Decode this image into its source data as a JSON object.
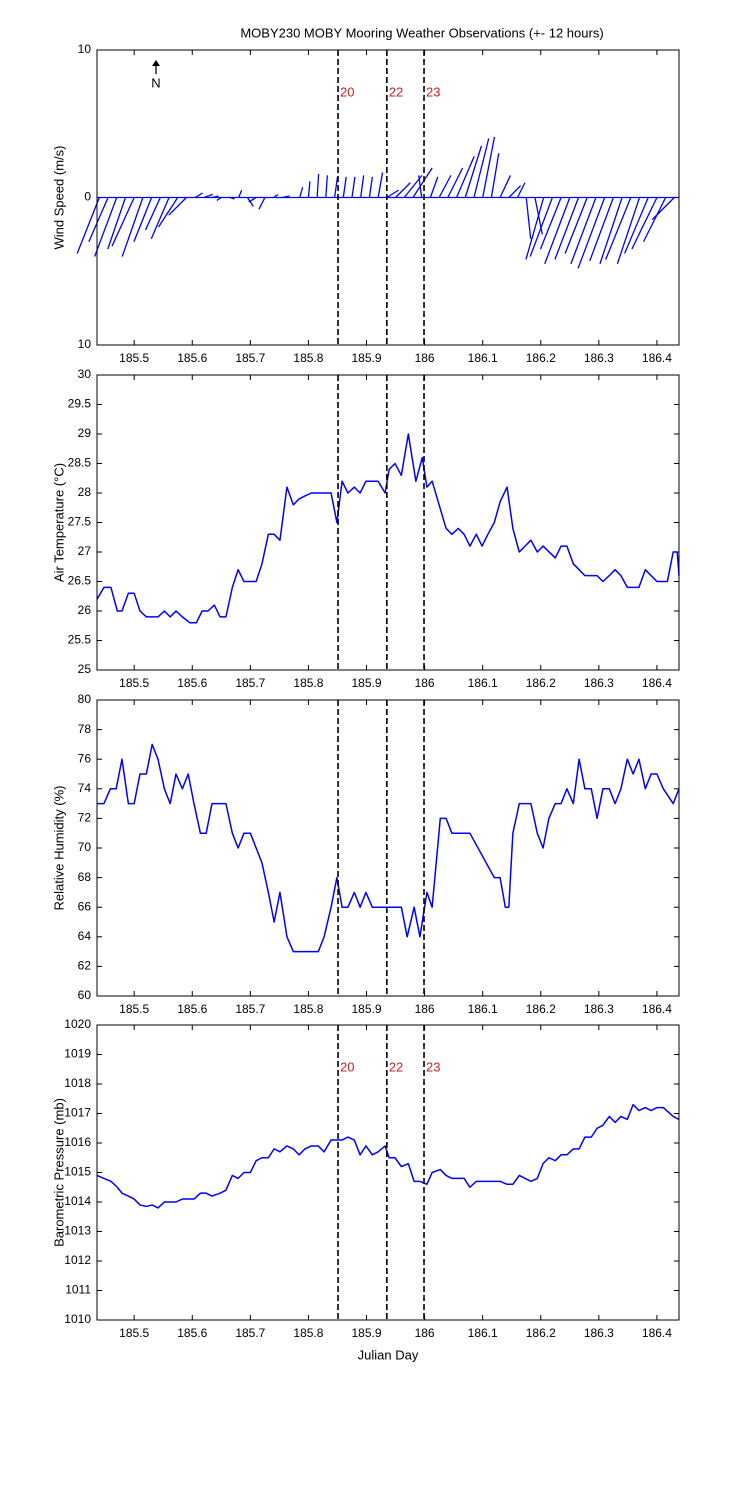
{
  "title": "MOBY230 MOBY Mooring Weather Observations (+- 12 hours)",
  "chart_data": [
    {
      "type": "stick",
      "ylabel": "Wind Speed (m/s)",
      "color": "#0000ff",
      "annotation": "N",
      "xlim": [
        185.436,
        186.438
      ],
      "xticks": [
        185.5,
        185.6,
        185.7,
        185.8,
        185.9,
        186,
        186.1,
        186.2,
        186.3,
        186.4
      ],
      "ylim": [
        -10,
        10
      ],
      "yticks": [
        {
          "value": -10,
          "label": "10"
        },
        0,
        10
      ],
      "vlines": [
        185.851,
        185.935,
        185.999
      ],
      "vline_labels": [
        "20",
        "22",
        "23"
      ],
      "x": [
        185.44,
        185.455,
        185.47,
        185.485,
        185.5,
        185.515,
        185.53,
        185.545,
        185.56,
        185.575,
        185.59,
        185.605,
        185.62,
        185.635,
        185.65,
        185.665,
        185.68,
        185.695,
        185.71,
        185.725,
        185.74,
        185.755,
        185.77,
        185.785,
        185.8,
        185.815,
        185.83,
        185.845,
        185.86,
        185.875,
        185.89,
        185.905,
        185.92,
        185.935,
        185.95,
        185.965,
        185.98,
        185.995,
        186.01,
        186.025,
        186.04,
        186.055,
        186.07,
        186.085,
        186.1,
        186.115,
        186.13,
        186.145,
        186.16,
        186.175,
        186.19,
        186.205,
        186.22,
        186.235,
        186.25,
        186.265,
        186.28,
        186.295,
        186.31,
        186.325,
        186.34,
        186.355,
        186.37,
        186.385,
        186.4,
        186.415,
        186.43
      ],
      "u": [
        -1.5,
        -1.3,
        -1.5,
        -1.2,
        -1.5,
        -1.4,
        -1.2,
        -1,
        -1.2,
        -1.3,
        -1.2,
        0.5,
        0.6,
        0.4,
        -0.3,
        0.3,
        0.2,
        0.4,
        -0.5,
        -0.4,
        0.3,
        0.5,
        0,
        0.2,
        0.1,
        0.1,
        0.1,
        0.2,
        0.2,
        0.2,
        0.2,
        0.2,
        0.3,
        0.8,
        1,
        1.2,
        1.3,
        -0.2,
        0.5,
        0.8,
        1,
        1.2,
        1.1,
        1,
        0.8,
        0.5,
        0.7,
        0.8,
        0.5,
        0.3,
        0.5,
        -1.2,
        -1.5,
        -1.4,
        -1.7,
        -1.6,
        -1.5,
        -1.7,
        -1.8,
        -1.6,
        -1.5,
        -1.7,
        -1.5,
        -1.6,
        -1.7,
        -1.5,
        -1.5
      ],
      "values": [
        -3.8,
        -3,
        -4,
        -3.5,
        -3.3,
        -4,
        -3,
        -2.2,
        -2.8,
        -2,
        -1.2,
        0.3,
        0.2,
        0.1,
        -0.2,
        -0.1,
        0.5,
        -0.6,
        -0.3,
        -0.8,
        0.2,
        0.1,
        0,
        0.7,
        1.1,
        1.6,
        1.5,
        1.4,
        1.4,
        1.4,
        1.5,
        1.4,
        1.7,
        0.5,
        1,
        1.5,
        2,
        1.5,
        1.4,
        1.5,
        2,
        2.8,
        3.5,
        4,
        4.1,
        3,
        1.5,
        0.8,
        1,
        -2.8,
        -2.5,
        -4.2,
        -4,
        -3.5,
        -4.5,
        -4.2,
        -3.8,
        -4.5,
        -4.8,
        -4.3,
        -4.5,
        -4.2,
        -4.5,
        -3.8,
        -3.5,
        -3,
        -1.5
      ]
    },
    {
      "type": "line",
      "ylabel": "Air Temperature (°C)",
      "color": "#0000ff",
      "xlim": [
        185.436,
        186.438
      ],
      "xticks": [
        185.5,
        185.6,
        185.7,
        185.8,
        185.9,
        186,
        186.1,
        186.2,
        186.3,
        186.4
      ],
      "ylim": [
        25,
        30
      ],
      "yticks": [
        25,
        25.5,
        26,
        26.5,
        27,
        27.5,
        28,
        28.5,
        29,
        29.5,
        30
      ],
      "vlines": [
        185.851,
        185.935,
        185.999
      ],
      "x": [
        185.436,
        185.448,
        185.46,
        185.471,
        185.479,
        185.49,
        185.5,
        185.51,
        185.521,
        185.541,
        185.552,
        185.562,
        185.572,
        185.583,
        185.596,
        185.607,
        185.617,
        185.627,
        185.638,
        185.648,
        185.658,
        185.669,
        185.679,
        185.689,
        185.71,
        185.72,
        185.731,
        185.741,
        185.751,
        185.763,
        185.774,
        185.784,
        185.794,
        185.805,
        185.839,
        185.849,
        185.858,
        185.868,
        185.879,
        185.889,
        185.899,
        185.92,
        185.932,
        185.939,
        185.949,
        185.96,
        185.972,
        185.985,
        185.996,
        186.004,
        186.013,
        186.037,
        186.047,
        186.058,
        186.068,
        186.078,
        186.089,
        186.099,
        186.109,
        186.12,
        186.13,
        186.142,
        186.152,
        186.163,
        186.173,
        186.183,
        186.194,
        186.204,
        186.225,
        186.235,
        186.245,
        186.256,
        186.266,
        186.276,
        186.297,
        186.307,
        186.318,
        186.328,
        186.338,
        186.349,
        186.369,
        186.38,
        186.4,
        186.411,
        186.418,
        186.428,
        186.435,
        186.438
      ],
      "values": [
        26.2,
        26.4,
        26.4,
        26.0,
        26.0,
        26.3,
        26.3,
        26.0,
        25.9,
        25.9,
        26.0,
        25.9,
        26.0,
        25.9,
        25.8,
        25.8,
        26.0,
        26.0,
        26.1,
        25.9,
        25.9,
        26.4,
        26.7,
        26.5,
        26.5,
        26.8,
        27.3,
        27.3,
        27.2,
        28.1,
        27.8,
        27.9,
        27.95,
        28.0,
        28.0,
        27.5,
        28.2,
        28.0,
        28.1,
        28.0,
        28.2,
        28.2,
        28.0,
        28.4,
        28.5,
        28.3,
        29.0,
        28.2,
        28.6,
        28.1,
        28.2,
        27.4,
        27.3,
        27.4,
        27.3,
        27.1,
        27.3,
        27.1,
        27.3,
        27.5,
        27.85,
        28.1,
        27.4,
        27.0,
        27.1,
        27.2,
        27.0,
        27.1,
        26.9,
        27.1,
        27.1,
        26.8,
        26.7,
        26.6,
        26.6,
        26.5,
        26.6,
        26.7,
        26.6,
        26.4,
        26.4,
        26.7,
        26.5,
        26.5,
        26.5,
        27.0,
        27.0,
        26.6
      ]
    },
    {
      "type": "line",
      "ylabel": "Relative Humidity (%)",
      "color": "#0000ff",
      "xlim": [
        185.436,
        186.438
      ],
      "xticks": [
        185.5,
        185.6,
        185.7,
        185.8,
        185.9,
        186,
        186.1,
        186.2,
        186.3,
        186.4
      ],
      "ylim": [
        60,
        80
      ],
      "yticks": [
        60,
        62,
        64,
        66,
        68,
        70,
        72,
        74,
        76,
        78,
        80
      ],
      "vlines": [
        185.851,
        185.935,
        185.999
      ],
      "x": [
        185.436,
        185.448,
        185.459,
        185.469,
        185.479,
        185.49,
        185.5,
        185.51,
        185.521,
        185.531,
        185.541,
        185.552,
        185.562,
        185.572,
        185.583,
        185.593,
        185.603,
        185.614,
        185.624,
        185.634,
        185.658,
        185.669,
        185.679,
        185.689,
        185.7,
        185.72,
        185.731,
        185.741,
        185.751,
        185.763,
        185.774,
        185.817,
        185.827,
        185.839,
        185.849,
        185.858,
        185.868,
        185.879,
        185.889,
        185.899,
        185.91,
        185.96,
        185.97,
        185.982,
        185.992,
        186.004,
        186.013,
        186.027,
        186.037,
        186.047,
        186.078,
        186.12,
        186.13,
        186.139,
        186.145,
        186.152,
        186.163,
        186.183,
        186.194,
        186.204,
        186.214,
        186.225,
        186.235,
        186.245,
        186.256,
        186.266,
        186.276,
        186.287,
        186.297,
        186.307,
        186.318,
        186.328,
        186.338,
        186.349,
        186.359,
        186.369,
        186.38,
        186.39,
        186.4,
        186.411,
        186.428,
        186.438
      ],
      "values": [
        73,
        73,
        74,
        74,
        76,
        73,
        73,
        75,
        75,
        77,
        76,
        74,
        73,
        75,
        74,
        75,
        73,
        71,
        71,
        73,
        73,
        71,
        70,
        71,
        71,
        69,
        67,
        65,
        67,
        64,
        63,
        63,
        64,
        66,
        68,
        66,
        66,
        67,
        66,
        67,
        66,
        66,
        64,
        66,
        64,
        67,
        66,
        72,
        72,
        71,
        71,
        68,
        68,
        66,
        66,
        71,
        73,
        73,
        71,
        70,
        72,
        73,
        73,
        74,
        73,
        76,
        74,
        74,
        72,
        74,
        74,
        73,
        74,
        76,
        75,
        76,
        74,
        75,
        75,
        74,
        73,
        74
      ]
    },
    {
      "type": "line",
      "ylabel": "Barometric Pressure (mb)",
      "xlabel": "Julian Day",
      "color": "#0000ff",
      "xlim": [
        185.436,
        186.438
      ],
      "xticks": [
        185.5,
        185.6,
        185.7,
        185.8,
        185.9,
        186,
        186.1,
        186.2,
        186.3,
        186.4
      ],
      "ylim": [
        1010,
        1020
      ],
      "yticks": [
        1010,
        1011,
        1012,
        1013,
        1014,
        1015,
        1016,
        1017,
        1018,
        1019,
        1020
      ],
      "vlines": [
        185.851,
        185.935,
        185.999
      ],
      "vline_labels": [
        "20",
        "22",
        "23"
      ],
      "x": [
        185.436,
        185.448,
        185.46,
        185.471,
        185.479,
        185.49,
        185.5,
        185.51,
        185.521,
        185.531,
        185.541,
        185.552,
        185.572,
        185.583,
        185.603,
        185.614,
        185.624,
        185.634,
        185.648,
        185.658,
        185.669,
        185.679,
        185.689,
        185.7,
        185.71,
        185.72,
        185.731,
        185.741,
        185.751,
        185.763,
        185.774,
        185.784,
        185.794,
        185.805,
        185.817,
        185.827,
        185.839,
        185.858,
        185.868,
        185.879,
        185.889,
        185.899,
        185.91,
        185.92,
        185.932,
        185.939,
        185.949,
        185.96,
        185.972,
        185.982,
        185.992,
        186.004,
        186.013,
        186.027,
        186.037,
        186.047,
        186.068,
        186.078,
        186.089,
        186.13,
        186.142,
        186.152,
        186.163,
        186.173,
        186.183,
        186.194,
        186.204,
        186.214,
        186.225,
        186.235,
        186.245,
        186.256,
        186.266,
        186.276,
        186.287,
        186.297,
        186.307,
        186.318,
        186.328,
        186.338,
        186.349,
        186.359,
        186.369,
        186.38,
        186.39,
        186.4,
        186.411,
        186.428,
        186.438
      ],
      "values": [
        1014.9,
        1014.8,
        1014.7,
        1014.5,
        1014.3,
        1014.2,
        1014.1,
        1013.9,
        1013.85,
        1013.9,
        1013.8,
        1014.0,
        1014.0,
        1014.1,
        1014.1,
        1014.3,
        1014.3,
        1014.2,
        1014.3,
        1014.4,
        1014.9,
        1014.8,
        1015.0,
        1015.0,
        1015.4,
        1015.5,
        1015.5,
        1015.8,
        1015.7,
        1015.9,
        1015.8,
        1015.6,
        1015.8,
        1015.9,
        1015.9,
        1015.7,
        1016.1,
        1016.1,
        1016.2,
        1016.1,
        1015.6,
        1015.9,
        1015.6,
        1015.7,
        1015.9,
        1015.5,
        1015.5,
        1015.2,
        1015.3,
        1014.7,
        1014.7,
        1014.6,
        1015.0,
        1015.1,
        1014.9,
        1014.8,
        1014.8,
        1014.5,
        1014.7,
        1014.7,
        1014.6,
        1014.6,
        1014.9,
        1014.8,
        1014.7,
        1014.8,
        1015.3,
        1015.5,
        1015.4,
        1015.6,
        1015.6,
        1015.8,
        1015.8,
        1016.2,
        1016.2,
        1016.5,
        1016.6,
        1016.9,
        1016.7,
        1016.9,
        1016.8,
        1017.3,
        1017.1,
        1017.2,
        1017.1,
        1017.2,
        1017.2,
        1016.9,
        1016.8
      ]
    }
  ]
}
